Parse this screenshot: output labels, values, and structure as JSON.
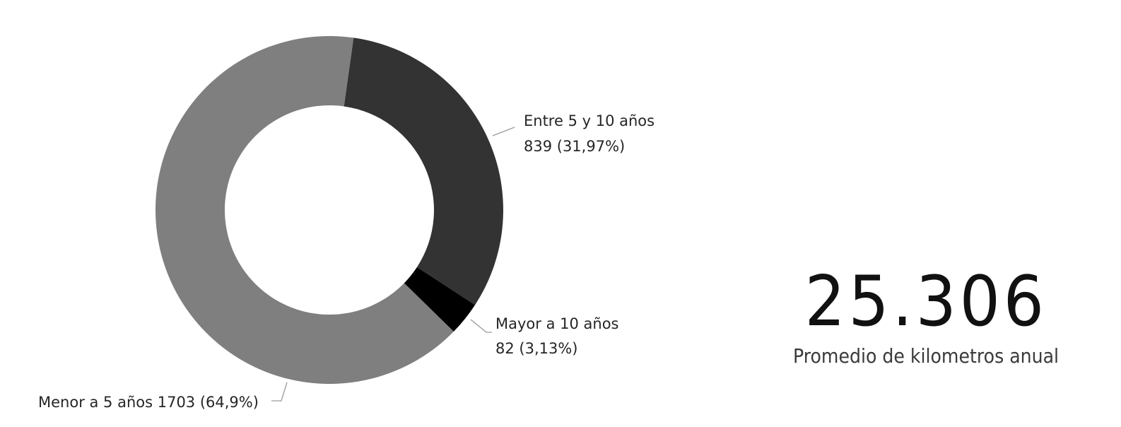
{
  "chart_data": {
    "type": "pie",
    "variant": "donut",
    "title": "",
    "slices": [
      {
        "label": "Entre 5 y 10 años",
        "value": 839,
        "percent_label": "31,97%",
        "color": "#333333"
      },
      {
        "label": "Mayor a 10 años",
        "value": 82,
        "percent_label": "3,13%",
        "color": "#000000"
      },
      {
        "label": "Menor a 5 años",
        "value": 1703,
        "percent_label": "64,9%",
        "color": "#7f7f7f"
      }
    ],
    "legend": "none"
  },
  "kpi": {
    "value": "25.306",
    "caption": "Promedio de kilometros anual"
  }
}
